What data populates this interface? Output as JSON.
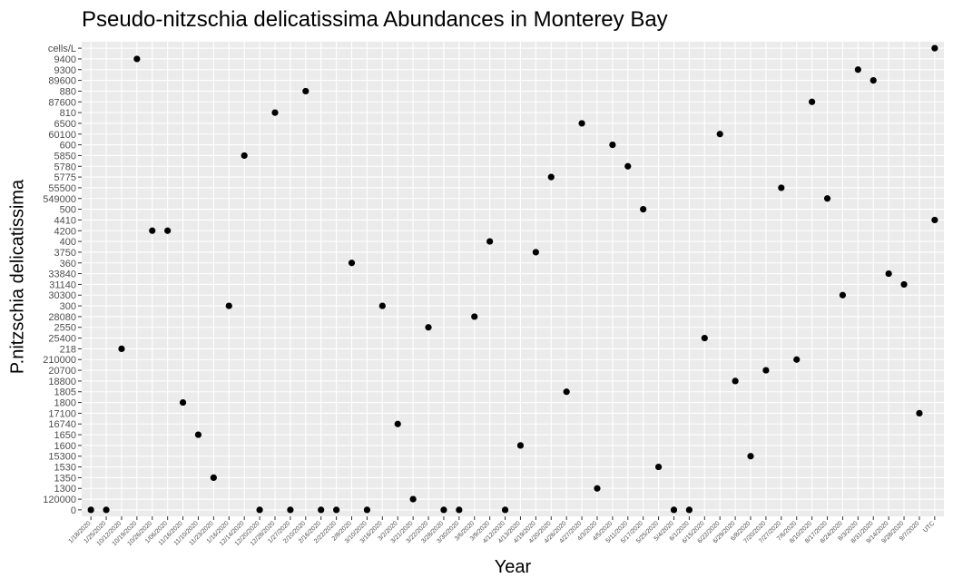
{
  "chart_data": {
    "type": "scatter",
    "title": "Pseudo-nitzschia delicatissima Abundances in Monterey Bay",
    "xlabel": "Year",
    "ylabel": "P.nitzschia delicatissima",
    "grid": true,
    "legend": "none",
    "colors": {
      "panel": "#ebebeb",
      "grid": "#ffffff",
      "point": "#000000",
      "tick": "#333333"
    },
    "y_categories": [
      "0",
      "120000",
      "1300",
      "1350",
      "1530",
      "15300",
      "1600",
      "1650",
      "16740",
      "17100",
      "1800",
      "1805",
      "18800",
      "20700",
      "210000",
      "218",
      "25400",
      "2550",
      "28080",
      "300",
      "30300",
      "31140",
      "33840",
      "360",
      "3750",
      "400",
      "4200",
      "4410",
      "500",
      "549000",
      "55500",
      "5775",
      "5780",
      "5850",
      "600",
      "60100",
      "6500",
      "810",
      "87600",
      "880",
      "89600",
      "9300",
      "9400",
      "cells/L"
    ],
    "x_categories": [
      "1/18/2020",
      "1/25/2020",
      "10/12/2020",
      "10/19/2020",
      "10/26/2020",
      "1/06/2020",
      "11/16/2020",
      "11/10/2020",
      "11/23/2020",
      "1/16/2020",
      "12/14/2020",
      "12/20/2020",
      "12/28/2020",
      "1/27/2020",
      "2/10/2020",
      "2/16/2020",
      "2/22/2020",
      "2/8/2020",
      "3/10/2020",
      "3/16/2020",
      "3/2/2020",
      "3/21/2020",
      "3/22/2020",
      "3/28/2020",
      "3/30/2020",
      "3/6/2020",
      "3/9/2020",
      "4/12/2020",
      "4/13/2020",
      "4/19/2020",
      "4/20/2020",
      "4/26/2020",
      "4/27/2020",
      "4/3/2020",
      "4/5/2020",
      "5/11/2020",
      "5/17/2020",
      "5/25/2020",
      "5/4/2020",
      "6/1/2020",
      "6/15/2020",
      "6/22/2020",
      "6/29/2020",
      "6/8/2020",
      "7/20/2020",
      "7/27/2020",
      "7/6/2020",
      "8/10/2020",
      "8/17/2020",
      "8/24/2020",
      "8/3/2020",
      "8/31/2020",
      "9/14/2020",
      "9/28/2020",
      "9/7/2020",
      "UTC"
    ],
    "points": [
      {
        "x": "1/18/2020",
        "y": "0"
      },
      {
        "x": "1/25/2020",
        "y": "0"
      },
      {
        "x": "10/12/2020",
        "y": "218"
      },
      {
        "x": "10/19/2020",
        "y": "9400"
      },
      {
        "x": "10/26/2020",
        "y": "4200"
      },
      {
        "x": "1/06/2020",
        "y": "4200"
      },
      {
        "x": "11/16/2020",
        "y": "1800"
      },
      {
        "x": "11/10/2020",
        "y": "1650"
      },
      {
        "x": "11/23/2020",
        "y": "1350"
      },
      {
        "x": "1/16/2020",
        "y": "300"
      },
      {
        "x": "12/14/2020",
        "y": "5850"
      },
      {
        "x": "12/20/2020",
        "y": "0"
      },
      {
        "x": "12/28/2020",
        "y": "810"
      },
      {
        "x": "1/27/2020",
        "y": "0"
      },
      {
        "x": "2/10/2020",
        "y": "880"
      },
      {
        "x": "2/16/2020",
        "y": "0"
      },
      {
        "x": "2/22/2020",
        "y": "0"
      },
      {
        "x": "2/8/2020",
        "y": "360"
      },
      {
        "x": "3/10/2020",
        "y": "0"
      },
      {
        "x": "3/16/2020",
        "y": "300"
      },
      {
        "x": "3/2/2020",
        "y": "16740"
      },
      {
        "x": "3/21/2020",
        "y": "120000"
      },
      {
        "x": "3/22/2020",
        "y": "2550"
      },
      {
        "x": "3/28/2020",
        "y": "0"
      },
      {
        "x": "3/30/2020",
        "y": "0"
      },
      {
        "x": "3/6/2020",
        "y": "28080"
      },
      {
        "x": "3/9/2020",
        "y": "400"
      },
      {
        "x": "4/12/2020",
        "y": "0"
      },
      {
        "x": "4/13/2020",
        "y": "1600"
      },
      {
        "x": "4/19/2020",
        "y": "3750"
      },
      {
        "x": "4/20/2020",
        "y": "5775"
      },
      {
        "x": "4/26/2020",
        "y": "1805"
      },
      {
        "x": "4/27/2020",
        "y": "6500"
      },
      {
        "x": "4/3/2020",
        "y": "1300"
      },
      {
        "x": "4/5/2020",
        "y": "600"
      },
      {
        "x": "5/11/2020",
        "y": "5780"
      },
      {
        "x": "5/17/2020",
        "y": "500"
      },
      {
        "x": "5/25/2020",
        "y": "1530"
      },
      {
        "x": "5/4/2020",
        "y": "0"
      },
      {
        "x": "6/1/2020",
        "y": "0"
      },
      {
        "x": "6/15/2020",
        "y": "25400"
      },
      {
        "x": "6/22/2020",
        "y": "60100"
      },
      {
        "x": "6/29/2020",
        "y": "18800"
      },
      {
        "x": "6/8/2020",
        "y": "15300"
      },
      {
        "x": "7/20/2020",
        "y": "20700"
      },
      {
        "x": "7/27/2020",
        "y": "55500"
      },
      {
        "x": "7/6/2020",
        "y": "210000"
      },
      {
        "x": "8/10/2020",
        "y": "87600"
      },
      {
        "x": "8/17/2020",
        "y": "549000"
      },
      {
        "x": "8/24/2020",
        "y": "30300"
      },
      {
        "x": "8/3/2020",
        "y": "9300"
      },
      {
        "x": "8/31/2020",
        "y": "89600"
      },
      {
        "x": "9/14/2020",
        "y": "33840"
      },
      {
        "x": "9/28/2020",
        "y": "31140"
      },
      {
        "x": "9/7/2020",
        "y": "17100"
      },
      {
        "x": "UTC",
        "y": "4410"
      },
      {
        "x": "UTC",
        "y": "cells/L"
      }
    ]
  }
}
